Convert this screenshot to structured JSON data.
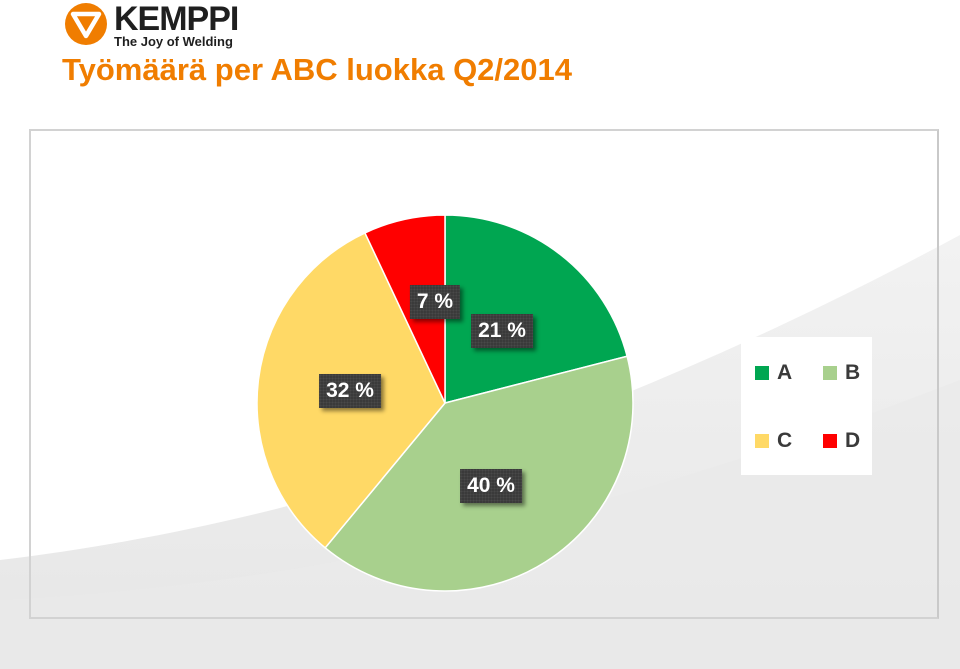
{
  "header": {
    "logo_text": "KEMPPI",
    "logo_tagline": "The Joy of Welding",
    "title": "Työmäärä per ABC luokka Q2/2014"
  },
  "colors": {
    "brand_orange": "#f07d00",
    "A": "#00a651",
    "B": "#a8d08d",
    "C": "#ffd966",
    "D": "#ff0000",
    "label_bg": "#3a3a3a"
  },
  "chart_data": {
    "type": "pie",
    "title": "",
    "categories": [
      "A",
      "B",
      "C",
      "D"
    ],
    "values": [
      21,
      40,
      32,
      7
    ],
    "labels": [
      "21 %",
      "40 %",
      "32 %",
      "7 %"
    ],
    "unit": "%",
    "start": "12 o'clock",
    "direction": "clockwise",
    "legend_position": "right"
  },
  "legend": {
    "items": [
      {
        "label": "A",
        "color": "#00a651"
      },
      {
        "label": "B",
        "color": "#a8d08d"
      },
      {
        "label": "C",
        "color": "#ffd966"
      },
      {
        "label": "D",
        "color": "#ff0000"
      }
    ]
  }
}
